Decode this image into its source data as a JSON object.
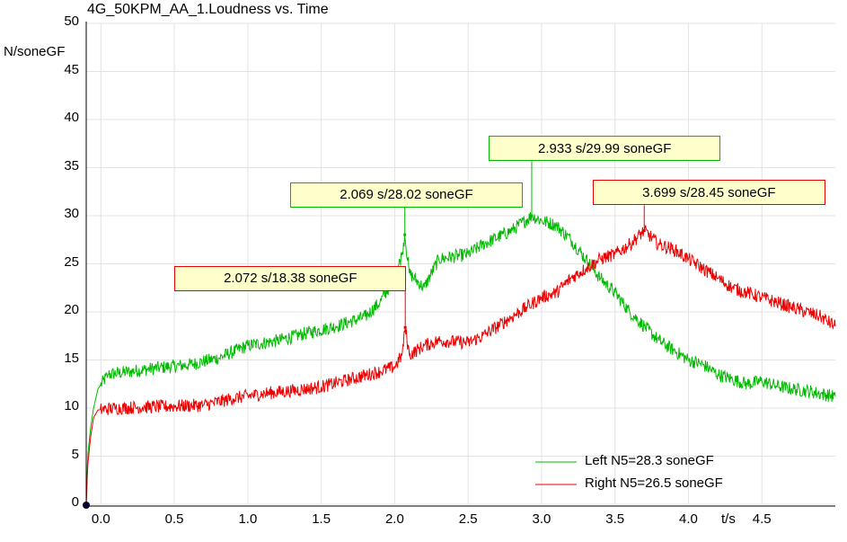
{
  "chart_data": {
    "type": "line",
    "title": "4G_50KPM_AA_1.Loudness vs. Time",
    "ylabel": "N/soneGF",
    "xlabel": "t/s",
    "xlim": [
      -0.1,
      5.0
    ],
    "ylim": [
      0,
      50
    ],
    "x_ticks": [
      "0.0",
      "0.5",
      "1.0",
      "1.5",
      "2.0",
      "2.5",
      "3.0",
      "3.5",
      "4.0",
      "4.5"
    ],
    "y_ticks": [
      "0",
      "5",
      "10",
      "15",
      "20",
      "25",
      "30",
      "35",
      "40",
      "45",
      "50"
    ],
    "grid": true,
    "legend_position": "bottom-right",
    "series": [
      {
        "name": "Left N5=28.3 soneGF",
        "color": "#00bb00",
        "points": [
          [
            -0.1,
            0
          ],
          [
            -0.09,
            5
          ],
          [
            -0.07,
            8
          ],
          [
            -0.05,
            10
          ],
          [
            -0.02,
            12
          ],
          [
            0.05,
            13.5
          ],
          [
            0.2,
            13.8
          ],
          [
            0.4,
            14.2
          ],
          [
            0.6,
            14.5
          ],
          [
            0.8,
            15.2
          ],
          [
            1.0,
            16.5
          ],
          [
            1.2,
            17
          ],
          [
            1.4,
            17.8
          ],
          [
            1.6,
            18.5
          ],
          [
            1.8,
            19.5
          ],
          [
            1.9,
            21
          ],
          [
            2.0,
            23.5
          ],
          [
            2.05,
            26
          ],
          [
            2.069,
            28.02
          ],
          [
            2.1,
            24
          ],
          [
            2.2,
            22.5
          ],
          [
            2.3,
            25.5
          ],
          [
            2.5,
            26
          ],
          [
            2.6,
            27
          ],
          [
            2.8,
            28.5
          ],
          [
            2.933,
            29.99
          ],
          [
            3.0,
            29.5
          ],
          [
            3.1,
            29
          ],
          [
            3.2,
            27.5
          ],
          [
            3.3,
            25.5
          ],
          [
            3.4,
            23.5
          ],
          [
            3.5,
            22
          ],
          [
            3.6,
            20
          ],
          [
            3.7,
            18.5
          ],
          [
            3.8,
            17
          ],
          [
            3.9,
            16
          ],
          [
            4.0,
            15
          ],
          [
            4.1,
            14.5
          ],
          [
            4.2,
            13.5
          ],
          [
            4.3,
            13
          ],
          [
            4.4,
            12.5
          ],
          [
            4.5,
            12.8
          ],
          [
            4.6,
            12.3
          ],
          [
            4.7,
            12
          ],
          [
            4.8,
            11.8
          ],
          [
            4.9,
            11.5
          ],
          [
            5.0,
            11.2
          ]
        ]
      },
      {
        "name": "Right N5=26.5 soneGF",
        "color": "#ee0000",
        "points": [
          [
            -0.1,
            0
          ],
          [
            -0.09,
            4
          ],
          [
            -0.07,
            7
          ],
          [
            -0.05,
            9
          ],
          [
            -0.02,
            9.8
          ],
          [
            0.1,
            10
          ],
          [
            0.3,
            10.1
          ],
          [
            0.5,
            10.2
          ],
          [
            0.7,
            10.3
          ],
          [
            0.9,
            11
          ],
          [
            1.1,
            11.5
          ],
          [
            1.3,
            11.8
          ],
          [
            1.5,
            12.2
          ],
          [
            1.7,
            13
          ],
          [
            1.9,
            13.8
          ],
          [
            2.0,
            14.3
          ],
          [
            2.05,
            15.5
          ],
          [
            2.072,
            18.38
          ],
          [
            2.1,
            15.5
          ],
          [
            2.2,
            16.5
          ],
          [
            2.3,
            17
          ],
          [
            2.5,
            16.8
          ],
          [
            2.6,
            17.5
          ],
          [
            2.8,
            19.5
          ],
          [
            2.9,
            20.5
          ],
          [
            3.0,
            21.5
          ],
          [
            3.1,
            22
          ],
          [
            3.2,
            23.5
          ],
          [
            3.3,
            24.5
          ],
          [
            3.4,
            25.5
          ],
          [
            3.5,
            26
          ],
          [
            3.6,
            27
          ],
          [
            3.699,
            28.45
          ],
          [
            3.8,
            27
          ],
          [
            3.9,
            26.5
          ],
          [
            4.0,
            25.5
          ],
          [
            4.1,
            24.5
          ],
          [
            4.2,
            23.5
          ],
          [
            4.3,
            22.5
          ],
          [
            4.4,
            22
          ],
          [
            4.5,
            21.5
          ],
          [
            4.6,
            21
          ],
          [
            4.7,
            20.5
          ],
          [
            4.8,
            20
          ],
          [
            4.9,
            19.5
          ],
          [
            5.0,
            18.5
          ]
        ]
      }
    ],
    "annotations": [
      {
        "text": "2.069 s/28.02 soneGF",
        "x": 2.069,
        "y": 28.02,
        "series": 0,
        "box_at": [
          1.29,
          33.5
        ],
        "box_width": 1.58
      },
      {
        "text": "2.072 s/18.38 soneGF",
        "x": 2.072,
        "y": 18.38,
        "series": 1,
        "box_at": [
          0.5,
          24.8
        ],
        "box_width": 1.58
      },
      {
        "text": "2.933 s/29.99 soneGF",
        "x": 2.933,
        "y": 29.99,
        "series": 0,
        "box_at": [
          2.64,
          38.3
        ],
        "box_width": 1.58
      },
      {
        "text": "3.699 s/28.45 soneGF",
        "x": 3.699,
        "y": 28.45,
        "series": 1,
        "box_at": [
          3.35,
          33.7
        ],
        "box_width": 1.58
      }
    ]
  }
}
